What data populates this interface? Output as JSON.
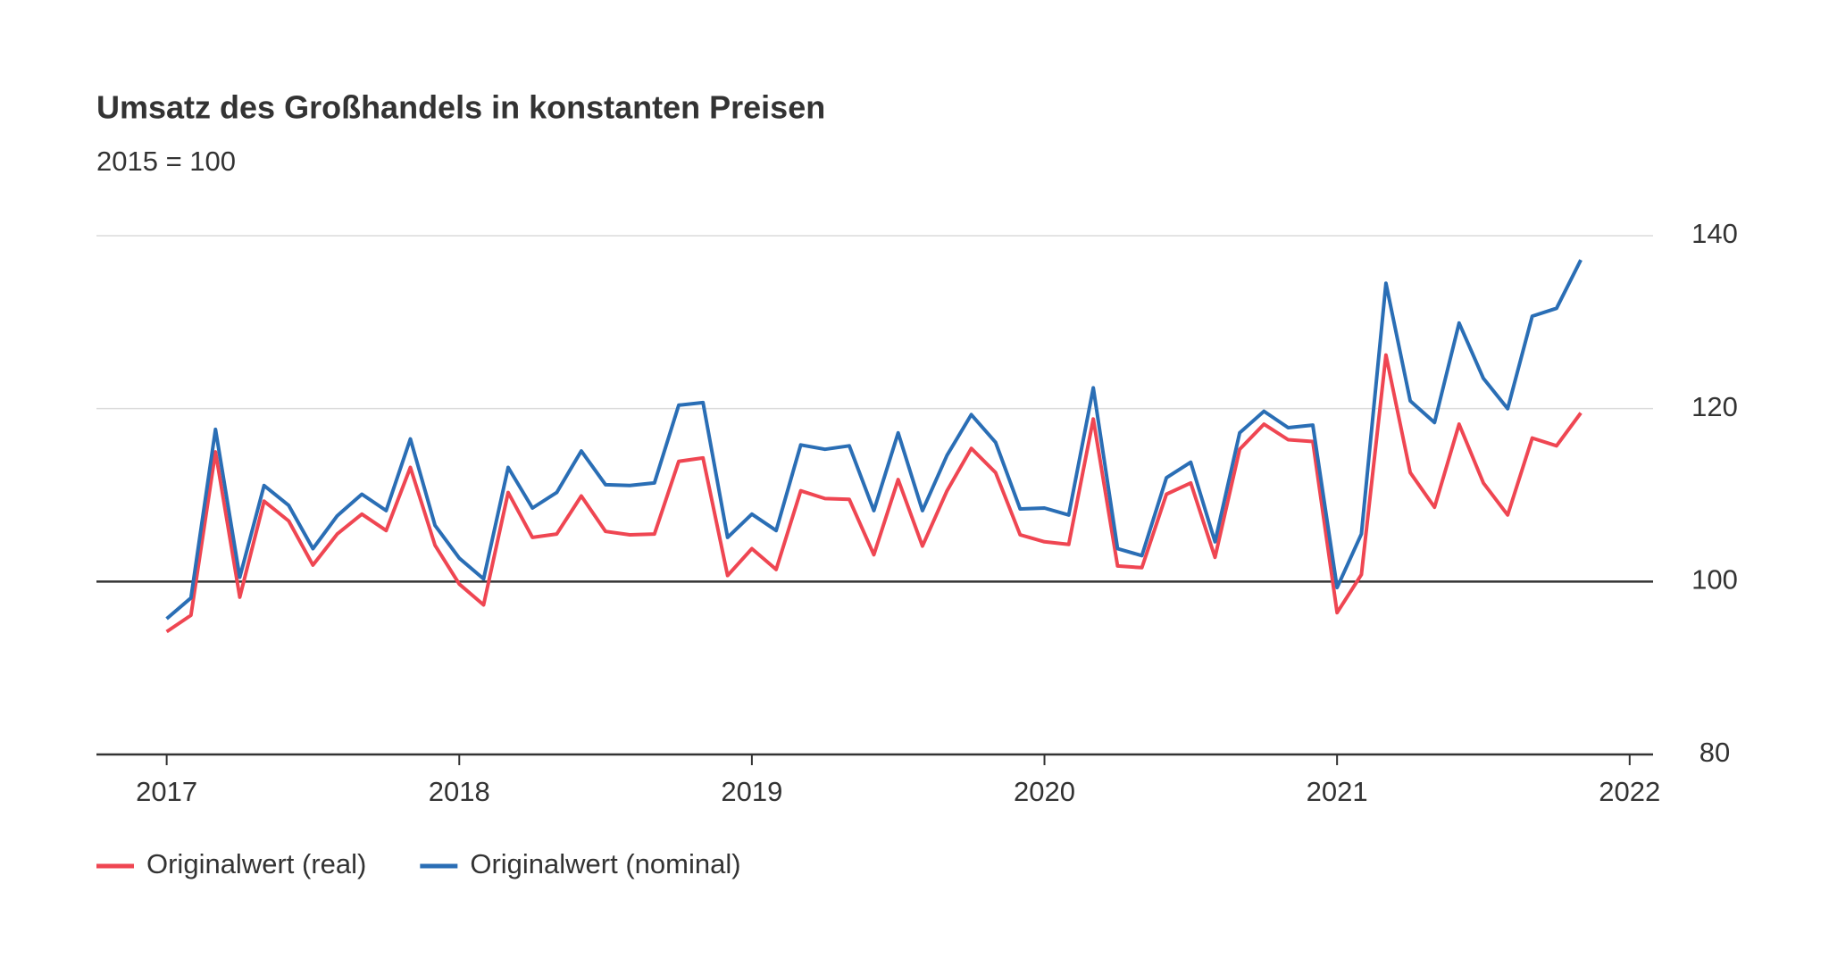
{
  "chart_data": {
    "type": "line",
    "title": "Umsatz des Großhandels in konstanten Preisen",
    "subtitle": "2015 = 100",
    "x": [
      2017,
      2017.083,
      2017.167,
      2017.25,
      2017.333,
      2017.417,
      2017.5,
      2017.583,
      2017.667,
      2017.75,
      2017.833,
      2017.917,
      2018,
      2018.083,
      2018.167,
      2018.25,
      2018.333,
      2018.417,
      2018.5,
      2018.583,
      2018.667,
      2018.75,
      2018.833,
      2018.917,
      2019,
      2019.083,
      2019.167,
      2019.25,
      2019.333,
      2019.417,
      2019.5,
      2019.583,
      2019.667,
      2019.75,
      2019.833,
      2019.917,
      2020,
      2020.083,
      2020.167,
      2020.25,
      2020.333,
      2020.417,
      2020.5,
      2020.583,
      2020.667,
      2020.75,
      2020.833,
      2020.917,
      2021,
      2021.083,
      2021.167,
      2021.25,
      2021.333,
      2021.417,
      2021.5,
      2021.583,
      2021.667,
      2021.75,
      2021.833
    ],
    "series": [
      {
        "name": "Originalwert (real)",
        "color": "#ef4652",
        "values": [
          94.2,
          96.1,
          115.0,
          98.2,
          109.3,
          107.0,
          101.9,
          105.5,
          107.8,
          105.9,
          113.2,
          104.2,
          99.7,
          97.3,
          110.3,
          105.1,
          105.5,
          109.9,
          105.8,
          105.4,
          105.5,
          113.9,
          114.3,
          100.7,
          103.8,
          101.4,
          110.5,
          109.6,
          109.5,
          103.1,
          111.8,
          104.1,
          110.5,
          115.4,
          112.6,
          105.4,
          104.6,
          104.3,
          118.8,
          101.8,
          101.6,
          110.1,
          111.4,
          102.8,
          115.3,
          118.2,
          116.4,
          116.2,
          96.4,
          100.8,
          126.2,
          112.6,
          108.6,
          118.2,
          111.4,
          107.7,
          116.6,
          115.7,
          119.5
        ]
      },
      {
        "name": "Originalwert (nominal)",
        "color": "#2a6eb5",
        "values": [
          95.7,
          98.1,
          117.6,
          100.5,
          111.1,
          108.8,
          103.8,
          107.6,
          110.1,
          108.2,
          116.5,
          106.5,
          102.7,
          100.3,
          113.2,
          108.5,
          110.3,
          115.1,
          111.2,
          111.1,
          111.4,
          120.4,
          120.7,
          105.1,
          107.8,
          105.9,
          115.8,
          115.3,
          115.7,
          108.2,
          117.2,
          108.2,
          114.6,
          119.3,
          116.1,
          108.4,
          108.5,
          107.7,
          122.4,
          103.8,
          103.0,
          112.0,
          113.8,
          104.6,
          117.2,
          119.7,
          117.8,
          118.1,
          99.3,
          105.5,
          134.5,
          120.9,
          118.4,
          129.9,
          123.5,
          120.0,
          130.7,
          131.6,
          137.2
        ]
      }
    ],
    "xlim": [
      2016.76,
      2022.08
    ],
    "xticks": [
      2017,
      2018,
      2019,
      2020,
      2021,
      2022
    ],
    "ylim": [
      80,
      140
    ],
    "yticks": [
      80,
      100,
      120,
      140
    ],
    "reference_line": 100,
    "grid": true,
    "legend": "bottom-left"
  }
}
